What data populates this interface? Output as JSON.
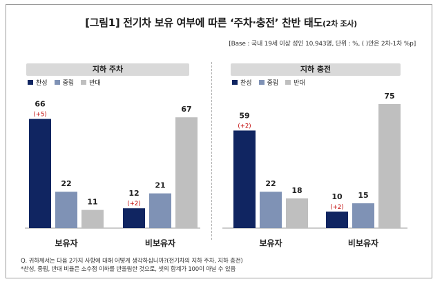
{
  "title": {
    "main": "[그림1] 전기차 보유 여부에 따른 ‘주차·충전’ 찬반 태도",
    "sub": "(2차 조사)"
  },
  "base_note": "[Base : 국내 19세 이상 성인 10,943명, 단위 : %, ( )안은 2차-1차 %p]",
  "colors": {
    "찬성": "#102561",
    "중립": "#7f92b5",
    "반대": "#bfbfbf",
    "change": "#c00000"
  },
  "chart_data": [
    {
      "type": "bar",
      "title": "지하 주차",
      "categories": [
        "보유자",
        "비보유자"
      ],
      "series": [
        {
          "name": "찬성",
          "values": [
            66,
            12
          ],
          "changes": [
            "(+5)",
            "(+2)"
          ]
        },
        {
          "name": "중립",
          "values": [
            22,
            21
          ]
        },
        {
          "name": "반대",
          "values": [
            11,
            67
          ]
        }
      ],
      "legend": "top-left",
      "ylim": [
        0,
        80
      ],
      "grid": false
    },
    {
      "type": "bar",
      "title": "지하 충전",
      "categories": [
        "보유자",
        "비보유자"
      ],
      "series": [
        {
          "name": "찬성",
          "values": [
            59,
            10
          ],
          "changes": [
            "(+2)",
            "(+2)"
          ]
        },
        {
          "name": "중립",
          "values": [
            22,
            15
          ]
        },
        {
          "name": "반대",
          "values": [
            18,
            75
          ]
        }
      ],
      "legend": "top-left",
      "ylim": [
        0,
        80
      ],
      "grid": false
    }
  ],
  "footnotes": {
    "q": "Q. 귀하께서는 다음 2가지 사항에 대해 어떻게 생각하십니까?(전기차의 지하 주차, 지하 충전)",
    "note": "*찬성, 중립, 반대 비율은 소수점 이하를 반올림한 것으로, 셋의 합계가 100이 아닐 수 있음"
  }
}
